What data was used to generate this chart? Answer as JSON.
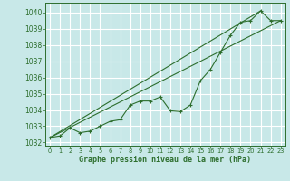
{
  "title": "Graphe pression niveau de la mer (hPa)",
  "bg_color": "#c8e8e8",
  "grid_color": "#ffffff",
  "line_color": "#2d6e2d",
  "xlim": [
    -0.5,
    23.5
  ],
  "ylim": [
    1031.8,
    1040.6
  ],
  "yticks": [
    1032,
    1033,
    1034,
    1035,
    1036,
    1037,
    1038,
    1039,
    1040
  ],
  "xticks": [
    0,
    1,
    2,
    3,
    4,
    5,
    6,
    7,
    8,
    9,
    10,
    11,
    12,
    13,
    14,
    15,
    16,
    17,
    18,
    19,
    20,
    21,
    22,
    23
  ],
  "series1": {
    "x": [
      0,
      1,
      2,
      3,
      4,
      5,
      6,
      7,
      8,
      9,
      10,
      11,
      12,
      13,
      14,
      15,
      16,
      17,
      18,
      19,
      20,
      21,
      22,
      23
    ],
    "y": [
      1032.3,
      1032.4,
      1032.9,
      1032.6,
      1032.7,
      1033.0,
      1033.3,
      1033.4,
      1034.3,
      1034.55,
      1034.55,
      1034.8,
      1033.95,
      1033.9,
      1034.3,
      1035.8,
      1036.5,
      1037.55,
      1038.6,
      1039.4,
      1039.5,
      1040.1,
      1039.5,
      1039.5
    ]
  },
  "series2_straight": {
    "x": [
      0,
      21
    ],
    "y": [
      1032.3,
      1040.1
    ]
  },
  "series3_straight": {
    "x": [
      0,
      23
    ],
    "y": [
      1032.3,
      1039.5
    ]
  },
  "ytick_fontsize": 5.5,
  "xtick_fontsize": 4.8,
  "xlabel_fontsize": 6.0
}
